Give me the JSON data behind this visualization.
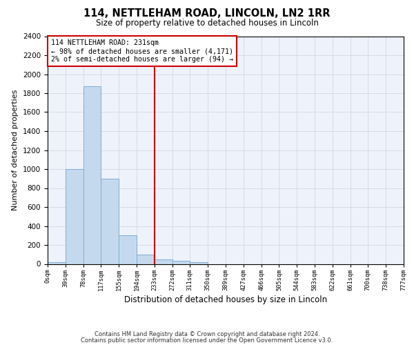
{
  "title": "114, NETTLEHAM ROAD, LINCOLN, LN2 1RR",
  "subtitle": "Size of property relative to detached houses in Lincoln",
  "xlabel": "Distribution of detached houses by size in Lincoln",
  "ylabel": "Number of detached properties",
  "bar_color": "#c5d9ee",
  "bar_edge_color": "#7badd4",
  "grid_color": "#d0d8e8",
  "bg_color": "#eef2fa",
  "red_line_color": "#cc0000",
  "annotation_box_color": "#cc0000",
  "bin_labels": [
    "0sqm",
    "39sqm",
    "78sqm",
    "117sqm",
    "155sqm",
    "194sqm",
    "233sqm",
    "272sqm",
    "311sqm",
    "350sqm",
    "389sqm",
    "427sqm",
    "466sqm",
    "505sqm",
    "544sqm",
    "583sqm",
    "622sqm",
    "661sqm",
    "700sqm",
    "738sqm",
    "777sqm"
  ],
  "bar_values": [
    20,
    1000,
    1870,
    900,
    305,
    100,
    50,
    30,
    15,
    0,
    0,
    0,
    0,
    0,
    0,
    0,
    0,
    0,
    0,
    0
  ],
  "red_line_bin": 6,
  "ylim": [
    0,
    2400
  ],
  "yticks": [
    0,
    200,
    400,
    600,
    800,
    1000,
    1200,
    1400,
    1600,
    1800,
    2000,
    2200,
    2400
  ],
  "annotation_line1": "114 NETTLEHAM ROAD: 231sqm",
  "annotation_line2": "← 98% of detached houses are smaller (4,171)",
  "annotation_line3": "2% of semi-detached houses are larger (94) →",
  "footnote1": "Contains HM Land Registry data © Crown copyright and database right 2024.",
  "footnote2": "Contains public sector information licensed under the Open Government Licence v3.0."
}
